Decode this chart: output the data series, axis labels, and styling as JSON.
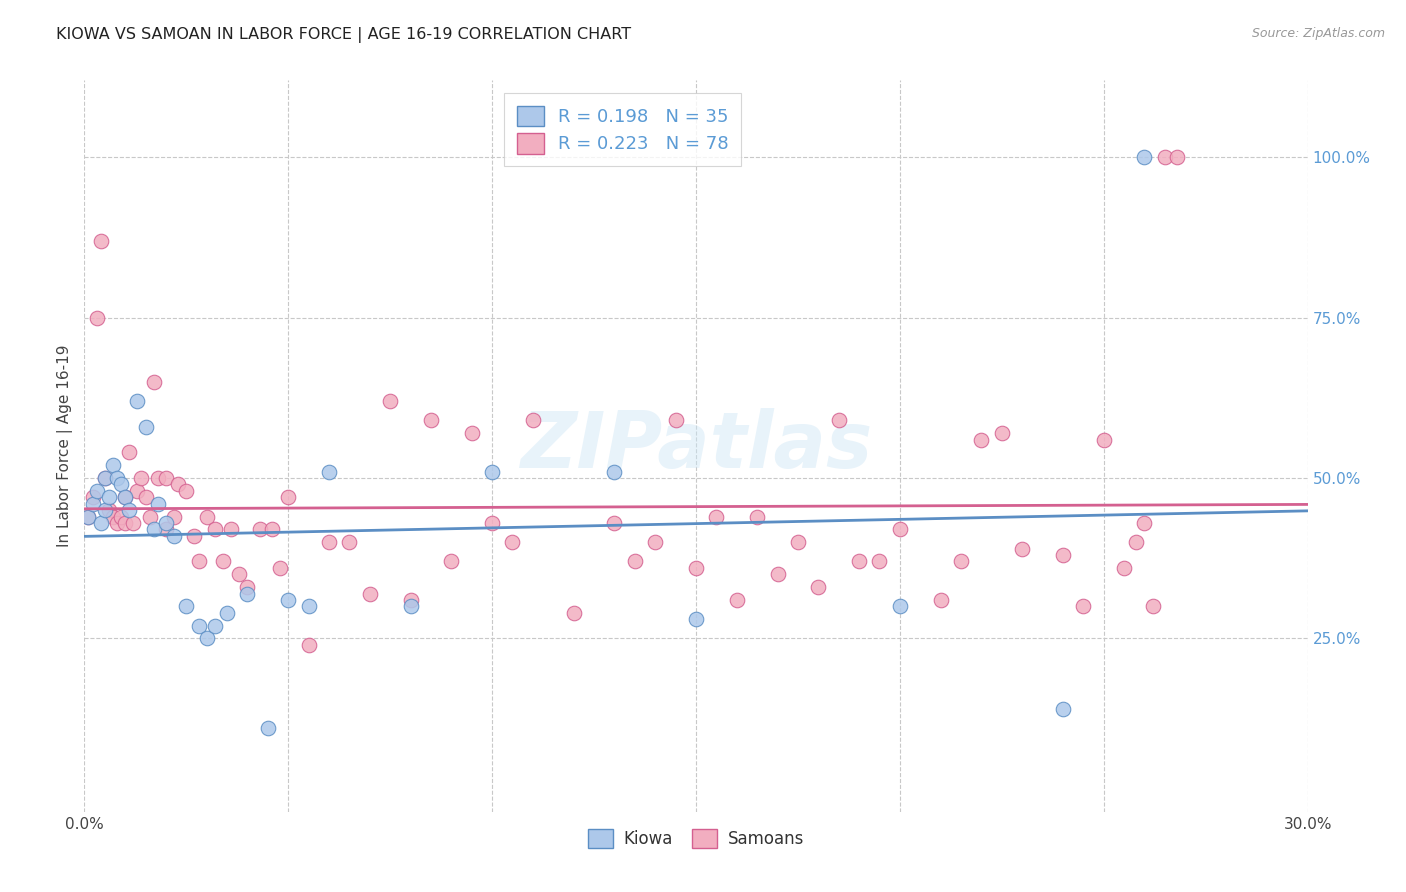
{
  "title": "KIOWA VS SAMOAN IN LABOR FORCE | AGE 16-19 CORRELATION CHART",
  "source": "Source: ZipAtlas.com",
  "ylabel_left": "In Labor Force | Age 16-19",
  "xlim": [
    0.0,
    0.3
  ],
  "ylim": [
    -0.02,
    1.12
  ],
  "xtick_positions": [
    0.0,
    0.05,
    0.1,
    0.15,
    0.2,
    0.25,
    0.3
  ],
  "xticklabels": [
    "0.0%",
    "",
    "",
    "",
    "",
    "",
    "30.0%"
  ],
  "yticks_right": [
    0.25,
    0.5,
    0.75,
    1.0
  ],
  "ytick_right_labels": [
    "25.0%",
    "50.0%",
    "75.0%",
    "100.0%"
  ],
  "right_tick_color": "#5b9bd5",
  "kiowa_R": 0.198,
  "kiowa_N": 35,
  "samoan_R": 0.223,
  "samoan_N": 78,
  "kiowa_color": "#adc8ea",
  "samoan_color": "#f2aec0",
  "kiowa_line_color": "#5b8ec4",
  "samoan_line_color": "#d46090",
  "legend_labels": [
    "Kiowa",
    "Samoans"
  ],
  "watermark": "ZIPatlas",
  "background_color": "#ffffff",
  "grid_color": "#c8c8c8",
  "title_color": "#222222",
  "kiowa_x": [
    0.001,
    0.002,
    0.003,
    0.004,
    0.005,
    0.005,
    0.006,
    0.007,
    0.008,
    0.009,
    0.01,
    0.011,
    0.013,
    0.015,
    0.017,
    0.018,
    0.02,
    0.022,
    0.025,
    0.028,
    0.03,
    0.032,
    0.035,
    0.04,
    0.045,
    0.05,
    0.055,
    0.06,
    0.08,
    0.1,
    0.13,
    0.15,
    0.2,
    0.24,
    0.26
  ],
  "kiowa_y": [
    0.44,
    0.46,
    0.48,
    0.43,
    0.5,
    0.45,
    0.47,
    0.52,
    0.5,
    0.49,
    0.47,
    0.45,
    0.62,
    0.58,
    0.42,
    0.46,
    0.43,
    0.41,
    0.3,
    0.27,
    0.25,
    0.27,
    0.29,
    0.32,
    0.11,
    0.31,
    0.3,
    0.51,
    0.3,
    0.51,
    0.51,
    0.28,
    0.3,
    0.14,
    1.0
  ],
  "samoan_x": [
    0.001,
    0.002,
    0.003,
    0.004,
    0.005,
    0.006,
    0.007,
    0.008,
    0.009,
    0.01,
    0.01,
    0.011,
    0.012,
    0.013,
    0.014,
    0.015,
    0.016,
    0.017,
    0.018,
    0.02,
    0.02,
    0.022,
    0.023,
    0.025,
    0.027,
    0.028,
    0.03,
    0.032,
    0.034,
    0.036,
    0.038,
    0.04,
    0.043,
    0.046,
    0.048,
    0.05,
    0.055,
    0.06,
    0.065,
    0.07,
    0.075,
    0.08,
    0.085,
    0.09,
    0.095,
    0.1,
    0.105,
    0.11,
    0.12,
    0.13,
    0.135,
    0.14,
    0.145,
    0.15,
    0.155,
    0.16,
    0.165,
    0.17,
    0.175,
    0.18,
    0.185,
    0.19,
    0.195,
    0.2,
    0.21,
    0.215,
    0.22,
    0.225,
    0.23,
    0.24,
    0.245,
    0.25,
    0.255,
    0.258,
    0.26,
    0.262,
    0.265,
    0.268
  ],
  "samoan_y": [
    0.44,
    0.47,
    0.75,
    0.87,
    0.5,
    0.45,
    0.44,
    0.43,
    0.44,
    0.47,
    0.43,
    0.54,
    0.43,
    0.48,
    0.5,
    0.47,
    0.44,
    0.65,
    0.5,
    0.5,
    0.42,
    0.44,
    0.49,
    0.48,
    0.41,
    0.37,
    0.44,
    0.42,
    0.37,
    0.42,
    0.35,
    0.33,
    0.42,
    0.42,
    0.36,
    0.47,
    0.24,
    0.4,
    0.4,
    0.32,
    0.62,
    0.31,
    0.59,
    0.37,
    0.57,
    0.43,
    0.4,
    0.59,
    0.29,
    0.43,
    0.37,
    0.4,
    0.59,
    0.36,
    0.44,
    0.31,
    0.44,
    0.35,
    0.4,
    0.33,
    0.59,
    0.37,
    0.37,
    0.42,
    0.31,
    0.37,
    0.56,
    0.57,
    0.39,
    0.38,
    0.3,
    0.56,
    0.36,
    0.4,
    0.43,
    0.3,
    1.0,
    1.0
  ]
}
